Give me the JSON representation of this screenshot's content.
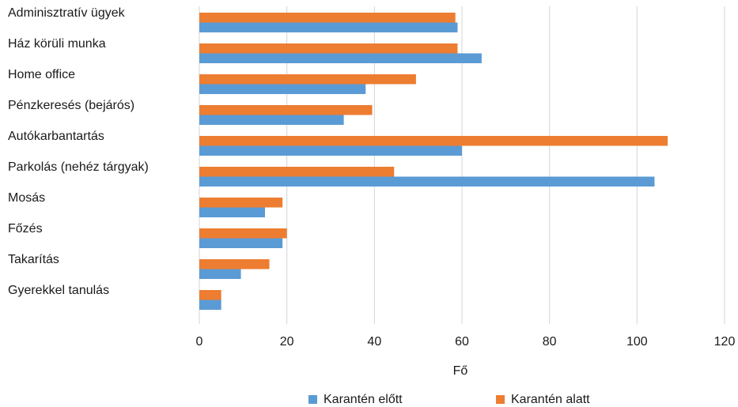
{
  "chart_data": {
    "type": "bar",
    "orientation": "horizontal",
    "categories": [
      "Adminisztratív ügyek",
      "Ház körüli munka",
      "Home office",
      "Pénzkeresés (bejárós)",
      "Autókarbantartás",
      "Parkolás (nehéz tárgyak)",
      "Mosás",
      "Főzés",
      "Takarítás",
      "Gyerekkel tanulás"
    ],
    "series": [
      {
        "name": "Karantén előtt",
        "color": "#5b9bd5",
        "values": [
          59,
          64.5,
          38,
          33,
          60,
          104,
          15,
          19,
          9.5,
          5
        ]
      },
      {
        "name": "Karantén alatt",
        "color": "#ed7d31",
        "values": [
          58.5,
          59,
          49.5,
          39.5,
          107,
          44.5,
          19,
          20,
          16,
          5
        ]
      }
    ],
    "xlabel": "Fő",
    "ylabel": "",
    "xlim": [
      0,
      120
    ],
    "xticks": [
      "0",
      "20",
      "40",
      "60",
      "80",
      "100",
      "120"
    ],
    "grid": true,
    "legend": "bottom"
  }
}
